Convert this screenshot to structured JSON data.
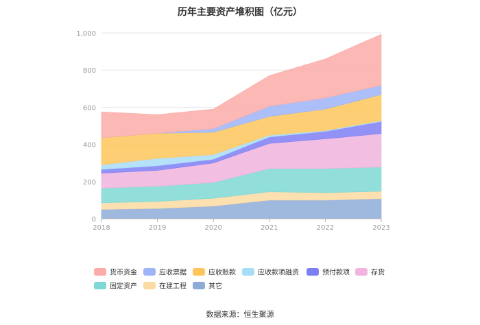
{
  "chart_data": {
    "type": "area",
    "stacked": true,
    "title": "历年主要资产堆积图（亿元）",
    "source": "数据来源：恒生聚源",
    "categories": [
      "2018",
      "2019",
      "2020",
      "2021",
      "2022",
      "2023"
    ],
    "y_ticks": [
      "0",
      "200",
      "400",
      "600",
      "800",
      "1,000"
    ],
    "ylim": [
      0,
      1000
    ],
    "series": [
      {
        "name": "其它",
        "color": "#8eabd8",
        "values": [
          50,
          55,
          68,
          100,
          100,
          108
        ]
      },
      {
        "name": "在建工程",
        "color": "#fcdba2",
        "values": [
          35,
          38,
          42,
          45,
          40,
          40
        ]
      },
      {
        "name": "固定资产",
        "color": "#7fd8d5",
        "values": [
          80,
          82,
          85,
          125,
          130,
          130
        ]
      },
      {
        "name": "存货",
        "color": "#f0b4de",
        "values": [
          80,
          85,
          105,
          135,
          160,
          180
        ]
      },
      {
        "name": "预付款项",
        "color": "#7f7ff4",
        "values": [
          20,
          25,
          20,
          35,
          40,
          65
        ]
      },
      {
        "name": "应收款项融资",
        "color": "#a8ddf8",
        "values": [
          25,
          40,
          25,
          10,
          5,
          5
        ]
      },
      {
        "name": "应收账款",
        "color": "#fdc65b",
        "values": [
          145,
          135,
          120,
          100,
          115,
          140
        ]
      },
      {
        "name": "应收票据",
        "color": "#9fb4f7",
        "values": [
          0,
          0,
          20,
          55,
          60,
          50
        ]
      },
      {
        "name": "货币资金",
        "color": "#fbaca8",
        "values": [
          140,
          100,
          105,
          165,
          210,
          275
        ]
      }
    ],
    "legend_order": [
      "货币资金",
      "应收票据",
      "应收账款",
      "应收款项融资",
      "预付款项",
      "存货",
      "固定资产",
      "在建工程",
      "其它"
    ]
  }
}
